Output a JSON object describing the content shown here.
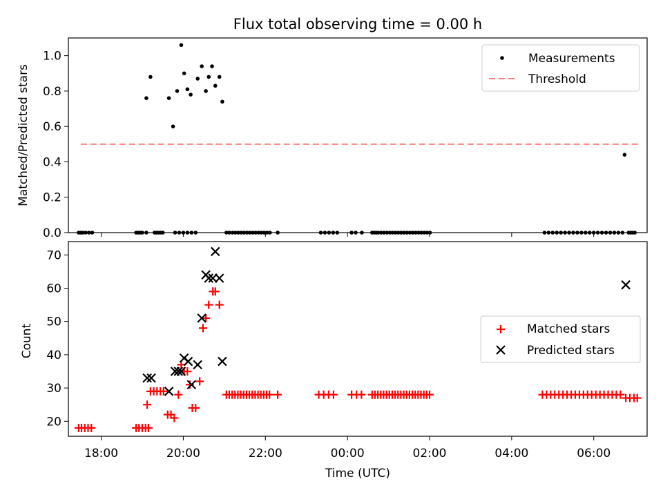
{
  "title": "Flux total observing time = 0.00 h",
  "xlabel": "Time (UTC)",
  "x_ticks": [
    "18:00",
    "20:00",
    "22:00",
    "00:00",
    "02:00",
    "04:00",
    "06:00"
  ],
  "chart_data": [
    {
      "type": "scatter",
      "ylabel": "Matched/Predicted stars",
      "ylim": [
        0,
        1.1
      ],
      "y_ticks": [
        "0.0",
        "0.2",
        "0.4",
        "0.6",
        "0.8",
        "1.0"
      ],
      "xlim_hours": [
        17.2,
        31.3
      ],
      "legend_position": "upper-right",
      "legend": [
        "Measurements",
        "Threshold"
      ],
      "colors": {
        "measurements": "#000000",
        "threshold": "#ff8080"
      },
      "threshold": {
        "value": 0.5,
        "x_start": 17.5,
        "x_end": 31.1
      },
      "measurements": [
        [
          17.45,
          0
        ],
        [
          17.5,
          0
        ],
        [
          17.55,
          0
        ],
        [
          17.62,
          0
        ],
        [
          17.7,
          0
        ],
        [
          17.78,
          0
        ],
        [
          18.85,
          0
        ],
        [
          18.9,
          0
        ],
        [
          18.95,
          0
        ],
        [
          19.0,
          0
        ],
        [
          19.1,
          0
        ],
        [
          19.1,
          0.76
        ],
        [
          19.2,
          0.88
        ],
        [
          19.65,
          0.76
        ],
        [
          19.75,
          0.6
        ],
        [
          19.85,
          0.8
        ],
        [
          19.95,
          1.06
        ],
        [
          20.02,
          0.9
        ],
        [
          20.1,
          0.81
        ],
        [
          20.18,
          0.78
        ],
        [
          20.35,
          0.87
        ],
        [
          20.45,
          0.94
        ],
        [
          20.55,
          0.8
        ],
        [
          20.62,
          0.88
        ],
        [
          20.7,
          0.94
        ],
        [
          20.78,
          0.83
        ],
        [
          20.88,
          0.88
        ],
        [
          20.95,
          0.74
        ],
        [
          19.3,
          0
        ],
        [
          19.35,
          0
        ],
        [
          19.4,
          0
        ],
        [
          19.45,
          0
        ],
        [
          19.5,
          0
        ],
        [
          19.8,
          0
        ],
        [
          19.9,
          0
        ],
        [
          20.0,
          0
        ],
        [
          20.1,
          0
        ],
        [
          20.2,
          0
        ],
        [
          20.3,
          0
        ],
        [
          21.05,
          0
        ],
        [
          21.12,
          0
        ],
        [
          21.2,
          0
        ],
        [
          21.27,
          0
        ],
        [
          21.34,
          0
        ],
        [
          21.41,
          0
        ],
        [
          21.48,
          0
        ],
        [
          21.55,
          0
        ],
        [
          21.62,
          0
        ],
        [
          21.69,
          0
        ],
        [
          21.76,
          0
        ],
        [
          21.83,
          0
        ],
        [
          21.9,
          0
        ],
        [
          21.97,
          0
        ],
        [
          22.04,
          0
        ],
        [
          22.11,
          0
        ],
        [
          22.3,
          0
        ],
        [
          23.35,
          0
        ],
        [
          23.45,
          0
        ],
        [
          23.55,
          0
        ],
        [
          23.65,
          0
        ],
        [
          23.75,
          0
        ],
        [
          24.1,
          0
        ],
        [
          24.2,
          0
        ],
        [
          24.35,
          0
        ],
        [
          24.6,
          0
        ],
        [
          24.65,
          0
        ],
        [
          24.7,
          0
        ],
        [
          24.75,
          0
        ],
        [
          24.82,
          0
        ],
        [
          24.89,
          0
        ],
        [
          24.96,
          0
        ],
        [
          25.03,
          0
        ],
        [
          25.1,
          0
        ],
        [
          25.17,
          0
        ],
        [
          25.24,
          0
        ],
        [
          25.31,
          0
        ],
        [
          25.38,
          0
        ],
        [
          25.45,
          0
        ],
        [
          25.52,
          0
        ],
        [
          25.59,
          0
        ],
        [
          25.66,
          0
        ],
        [
          25.73,
          0
        ],
        [
          25.8,
          0
        ],
        [
          25.87,
          0
        ],
        [
          25.94,
          0
        ],
        [
          26.01,
          0
        ],
        [
          28.8,
          0
        ],
        [
          28.9,
          0
        ],
        [
          29.0,
          0
        ],
        [
          29.1,
          0
        ],
        [
          29.2,
          0
        ],
        [
          29.3,
          0
        ],
        [
          29.4,
          0
        ],
        [
          29.5,
          0
        ],
        [
          29.6,
          0
        ],
        [
          29.7,
          0
        ],
        [
          29.8,
          0
        ],
        [
          29.9,
          0
        ],
        [
          30.0,
          0
        ],
        [
          30.1,
          0
        ],
        [
          30.2,
          0
        ],
        [
          30.3,
          0
        ],
        [
          30.4,
          0
        ],
        [
          30.5,
          0
        ],
        [
          30.6,
          0
        ],
        [
          30.7,
          0
        ],
        [
          30.75,
          0.44
        ],
        [
          30.85,
          0
        ],
        [
          30.9,
          0
        ],
        [
          30.95,
          0
        ],
        [
          31.0,
          0
        ]
      ]
    },
    {
      "type": "scatter",
      "ylabel": "Count",
      "ylim": [
        15.5,
        74
      ],
      "y_ticks": [
        "20",
        "30",
        "40",
        "50",
        "60",
        "70"
      ],
      "xlim_hours": [
        17.2,
        31.3
      ],
      "legend_position": "center-right",
      "legend": [
        "Matched stars",
        "Predicted stars"
      ],
      "colors": {
        "matched": "#ff0000",
        "predicted": "#000000"
      },
      "matched": [
        [
          17.45,
          18
        ],
        [
          17.52,
          18
        ],
        [
          17.6,
          18
        ],
        [
          17.68,
          18
        ],
        [
          17.76,
          18
        ],
        [
          18.85,
          18
        ],
        [
          18.92,
          18
        ],
        [
          19.0,
          18
        ],
        [
          19.08,
          18
        ],
        [
          19.15,
          18
        ],
        [
          19.12,
          25
        ],
        [
          19.2,
          29
        ],
        [
          19.28,
          29
        ],
        [
          19.36,
          29
        ],
        [
          19.44,
          29
        ],
        [
          19.52,
          29
        ],
        [
          19.62,
          22
        ],
        [
          19.7,
          22
        ],
        [
          19.78,
          21
        ],
        [
          19.88,
          28
        ],
        [
          19.95,
          37
        ],
        [
          20.02,
          35
        ],
        [
          20.1,
          35
        ],
        [
          20.16,
          31
        ],
        [
          20.22,
          24
        ],
        [
          20.3,
          24
        ],
        [
          20.4,
          32
        ],
        [
          20.48,
          48
        ],
        [
          20.55,
          51
        ],
        [
          20.62,
          55
        ],
        [
          20.72,
          59
        ],
        [
          20.78,
          59
        ],
        [
          20.88,
          55
        ],
        [
          21.05,
          28
        ],
        [
          21.12,
          28
        ],
        [
          21.19,
          28
        ],
        [
          21.26,
          28
        ],
        [
          21.33,
          28
        ],
        [
          21.4,
          28
        ],
        [
          21.47,
          28
        ],
        [
          21.54,
          28
        ],
        [
          21.61,
          28
        ],
        [
          21.68,
          28
        ],
        [
          21.75,
          28
        ],
        [
          21.82,
          28
        ],
        [
          21.89,
          28
        ],
        [
          21.96,
          28
        ],
        [
          22.03,
          28
        ],
        [
          22.1,
          28
        ],
        [
          22.3,
          28
        ],
        [
          23.3,
          28
        ],
        [
          23.42,
          28
        ],
        [
          23.54,
          28
        ],
        [
          23.66,
          28
        ],
        [
          24.1,
          28
        ],
        [
          24.22,
          28
        ],
        [
          24.34,
          28
        ],
        [
          24.6,
          28
        ],
        [
          24.67,
          28
        ],
        [
          24.74,
          28
        ],
        [
          24.81,
          28
        ],
        [
          24.88,
          28
        ],
        [
          24.95,
          28
        ],
        [
          25.02,
          28
        ],
        [
          25.09,
          28
        ],
        [
          25.16,
          28
        ],
        [
          25.23,
          28
        ],
        [
          25.3,
          28
        ],
        [
          25.37,
          28
        ],
        [
          25.44,
          28
        ],
        [
          25.51,
          28
        ],
        [
          25.58,
          28
        ],
        [
          25.65,
          28
        ],
        [
          25.72,
          28
        ],
        [
          25.79,
          28
        ],
        [
          25.86,
          28
        ],
        [
          25.93,
          28
        ],
        [
          26.0,
          28
        ],
        [
          28.75,
          28
        ],
        [
          28.85,
          28
        ],
        [
          28.95,
          28
        ],
        [
          29.05,
          28
        ],
        [
          29.15,
          28
        ],
        [
          29.25,
          28
        ],
        [
          29.35,
          28
        ],
        [
          29.45,
          28
        ],
        [
          29.55,
          28
        ],
        [
          29.65,
          28
        ],
        [
          29.75,
          28
        ],
        [
          29.85,
          28
        ],
        [
          29.95,
          28
        ],
        [
          30.05,
          28
        ],
        [
          30.15,
          28
        ],
        [
          30.25,
          28
        ],
        [
          30.35,
          28
        ],
        [
          30.45,
          28
        ],
        [
          30.55,
          28
        ],
        [
          30.65,
          28
        ],
        [
          30.78,
          27
        ],
        [
          30.88,
          27
        ],
        [
          30.98,
          27
        ],
        [
          31.06,
          27
        ]
      ],
      "predicted": [
        [
          19.12,
          33
        ],
        [
          19.22,
          33
        ],
        [
          19.65,
          29
        ],
        [
          19.8,
          35
        ],
        [
          19.88,
          35
        ],
        [
          19.95,
          35
        ],
        [
          20.02,
          39
        ],
        [
          20.12,
          38
        ],
        [
          20.2,
          31
        ],
        [
          20.35,
          37
        ],
        [
          20.45,
          51
        ],
        [
          20.55,
          64
        ],
        [
          20.62,
          63
        ],
        [
          20.72,
          63
        ],
        [
          20.78,
          71
        ],
        [
          20.88,
          63
        ],
        [
          20.95,
          38
        ],
        [
          30.78,
          61
        ]
      ]
    }
  ]
}
